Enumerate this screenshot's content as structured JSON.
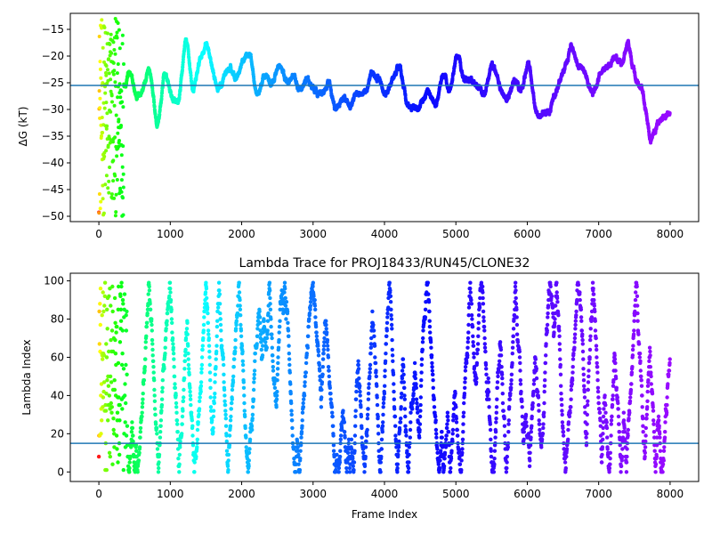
{
  "chart_data": [
    {
      "type": "scatter",
      "title": "",
      "xlabel": "",
      "ylabel": "ΔG (kT)",
      "xlim": [
        -400,
        8400
      ],
      "ylim": [
        -51,
        -12
      ],
      "x_ticks": [
        0,
        1000,
        2000,
        3000,
        4000,
        5000,
        6000,
        7000,
        8000
      ],
      "y_ticks": [
        -50,
        -45,
        -40,
        -35,
        -30,
        -25,
        -20,
        -15
      ],
      "x_tick_labels": [
        "0",
        "1000",
        "2000",
        "3000",
        "4000",
        "5000",
        "6000",
        "7000",
        "8000"
      ],
      "y_tick_labels": [
        "−50",
        "−45",
        "−40",
        "−35",
        "−30",
        "−25",
        "−20",
        "−15"
      ],
      "reference_line": -25.5,
      "reference_color": "#1f77b4",
      "color_map": "rainbow (late frames purple, early frames red)",
      "grid": false,
      "n_points": 8000,
      "series_trace": {
        "x": [
          0,
          200,
          300,
          400,
          500,
          600,
          700,
          800,
          900,
          1000,
          1100,
          1200,
          1300,
          1400,
          1500,
          1600,
          1700,
          1800,
          1900,
          2000,
          2100,
          2200,
          2300,
          2400,
          2500,
          2600,
          2700,
          2800,
          2900,
          3000,
          3100,
          3200,
          3300,
          3400,
          3500,
          3600,
          3700,
          3800,
          3900,
          4000,
          4100,
          4200,
          4300,
          4400,
          4500,
          4600,
          4700,
          4800,
          4900,
          5000,
          5100,
          5200,
          5300,
          5400,
          5500,
          5600,
          5700,
          5800,
          5900,
          6000,
          6100,
          6200,
          6300,
          6400,
          6500,
          6600,
          6700,
          6800,
          6900,
          7000,
          7100,
          7200,
          7300,
          7400,
          7500,
          7600,
          7700,
          7800,
          7900,
          8000
        ],
        "y": [
          -25,
          -26,
          -30,
          -22,
          -28,
          -26,
          -22,
          -35,
          -22,
          -28,
          -30,
          -15,
          -28,
          -20,
          -17,
          -26,
          -25,
          -22,
          -24,
          -20,
          -19,
          -28,
          -23,
          -26,
          -21,
          -25,
          -23,
          -27,
          -24,
          -27,
          -27,
          -25,
          -31,
          -27,
          -29,
          -26,
          -27,
          -24,
          -24,
          -28,
          -24,
          -21,
          -30,
          -30,
          -29,
          -26,
          -30,
          -23,
          -27,
          -18,
          -25,
          -24,
          -26,
          -26,
          -21,
          -26,
          -29,
          -24,
          -27,
          -20,
          -31,
          -31,
          -30,
          -26,
          -22,
          -17,
          -23,
          -23,
          -28,
          -23,
          -22,
          -20,
          -22,
          -17,
          -25,
          -27,
          -36,
          -33,
          -31,
          -31
        ]
      }
    },
    {
      "type": "scatter",
      "title": "Lambda Trace for PROJ18433/RUN45/CLONE32",
      "xlabel": "Frame Index",
      "ylabel": "Lambda Index",
      "xlim": [
        -400,
        8400
      ],
      "ylim": [
        -5,
        104
      ],
      "x_ticks": [
        0,
        1000,
        2000,
        3000,
        4000,
        5000,
        6000,
        7000,
        8000
      ],
      "y_ticks": [
        0,
        20,
        40,
        60,
        80,
        100
      ],
      "x_tick_labels": [
        "0",
        "1000",
        "2000",
        "3000",
        "4000",
        "5000",
        "6000",
        "7000",
        "8000"
      ],
      "y_tick_labels": [
        "0",
        "20",
        "40",
        "60",
        "80",
        "100"
      ],
      "reference_line": 15,
      "reference_color": "#1f77b4",
      "color_map": "rainbow (late frames purple, early frames red)",
      "grid": false,
      "n_points": 8000,
      "lambda_range": [
        0,
        99
      ]
    }
  ]
}
